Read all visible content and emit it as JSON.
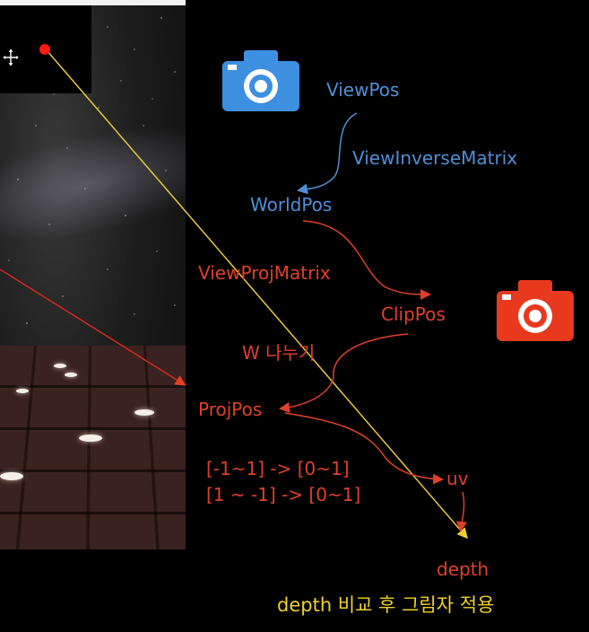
{
  "colors": {
    "blue": "#4f8fd8",
    "red": "#e0402a",
    "yellow": "#eed02a",
    "camera_blue": "#3d8fe0",
    "camera_red": "#e8391f"
  },
  "labels": {
    "view_pos": "ViewPos",
    "view_inverse_matrix": "ViewInverseMatrix",
    "world_pos": "WorldPos",
    "view_proj_matrix": "ViewProjMatrix",
    "clip_pos": "ClipPos",
    "w_divide": "W 나누기",
    "proj_pos": "ProjPos",
    "range_1": "[-1~1] -> [0~1]",
    "range_2": "[1 ~ -1] -> [0~1]",
    "uv": "uv",
    "depth": "depth",
    "footer": "depth 비교 후 그림자 적용"
  },
  "icons": {
    "view_camera": "camera-icon",
    "light_camera": "camera-icon",
    "cursor": "move-cursor-icon"
  }
}
